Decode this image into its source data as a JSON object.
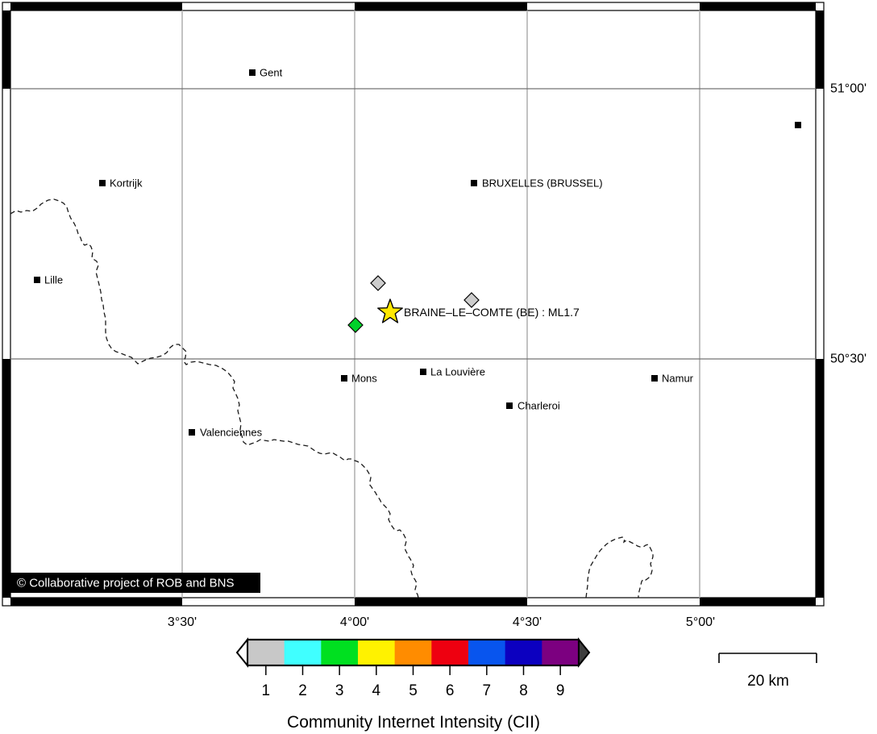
{
  "map": {
    "event": {
      "label": "BRAINE–LE–COMTE (BE) : ML1.7"
    },
    "copyright": "© Collaborative project of ROB and BNS",
    "cities": [
      {
        "name": "Gent"
      },
      {
        "name": "Kortrijk"
      },
      {
        "name": "Lille"
      },
      {
        "name": "BRUXELLES (BRUSSEL)"
      },
      {
        "name": "Mons"
      },
      {
        "name": "La Louvière"
      },
      {
        "name": "Charleroi"
      },
      {
        "name": "Valenciennes"
      },
      {
        "name": "Namur"
      }
    ],
    "axis": {
      "lon": [
        "3°30'",
        "4°00'",
        "4°30'",
        "5°00'"
      ],
      "lat": [
        "51°00'",
        "50°30'"
      ]
    }
  },
  "markers": {
    "epicenter_color": "#ffe800",
    "cii1_color": "#cdcdcd",
    "cii3_color": "#00d22a"
  },
  "colorbar": {
    "title": "Community Internet Intensity (CII)",
    "ticks": [
      "1",
      "2",
      "3",
      "4",
      "5",
      "6",
      "7",
      "8",
      "9"
    ],
    "colors": [
      "#c8c8c8",
      "#40ffff",
      "#00e020",
      "#fff200",
      "#ff8c00",
      "#ee0010",
      "#0855ee",
      "#0c00c0",
      "#7c0080"
    ]
  },
  "scalebar": {
    "label": "20 km"
  }
}
